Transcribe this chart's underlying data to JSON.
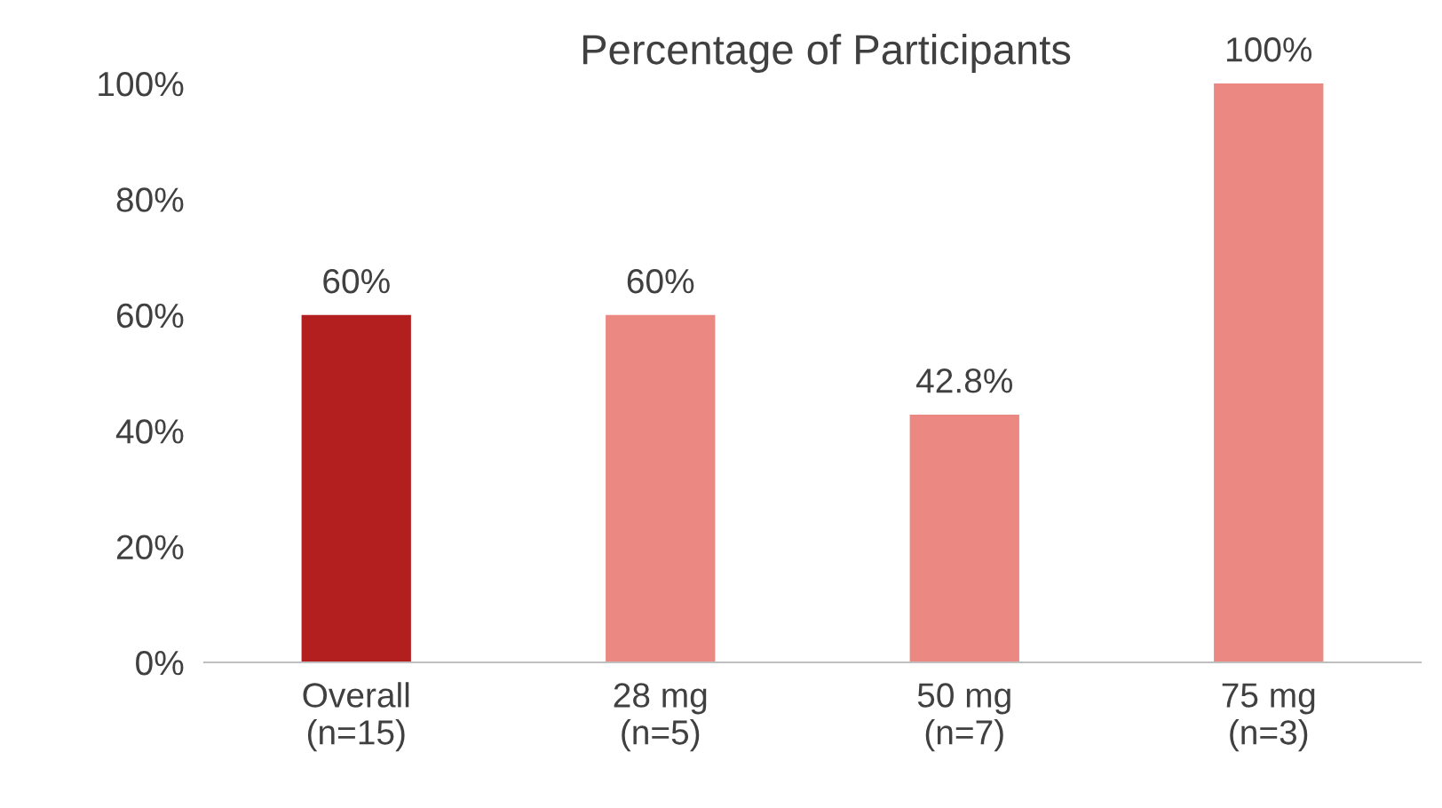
{
  "chart_data": {
    "type": "bar",
    "title": "Percentage of Participants",
    "categories": [
      "Overall\n(n=15)",
      "28 mg\n(n=5)",
      "50 mg\n(n=7)",
      "75 mg\n(n=3)"
    ],
    "values": [
      60,
      60,
      42.8,
      100
    ],
    "colors": [
      "#b31f1f",
      "#eb8882",
      "#eb8882",
      "#eb8882"
    ],
    "value_labels": [
      "60%",
      "60%",
      "42.8%",
      "100%"
    ],
    "ylim": [
      0,
      100
    ],
    "yticks": [
      {
        "value": 0,
        "label": "0%"
      },
      {
        "value": 20,
        "label": "20%"
      },
      {
        "value": 40,
        "label": "40%"
      },
      {
        "value": 60,
        "label": "60%"
      },
      {
        "value": 80,
        "label": "80%"
      },
      {
        "value": 100,
        "label": "100%"
      }
    ],
    "grid": false,
    "legend": false
  }
}
